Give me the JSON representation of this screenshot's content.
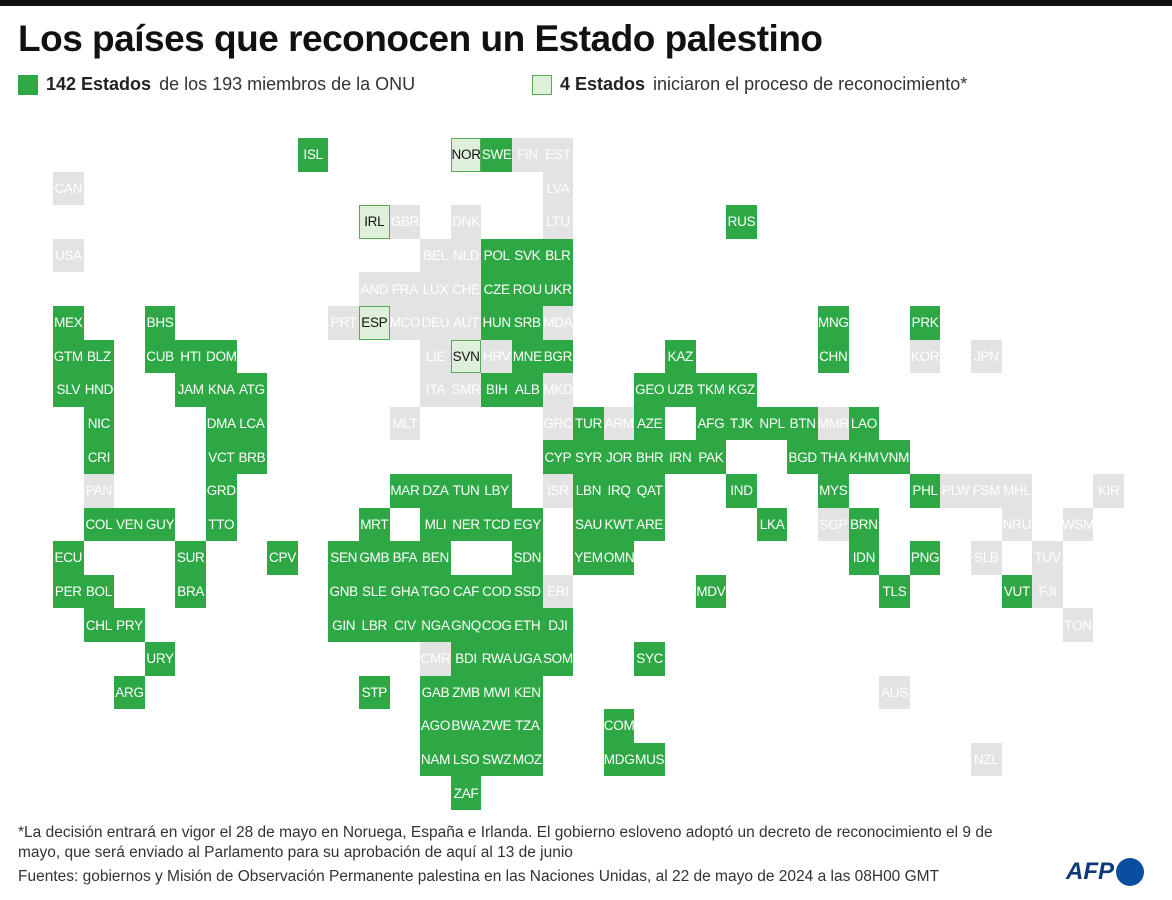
{
  "title": "Los países que reconocen un Estado palestino",
  "legend": {
    "recognized_bold": "142 Estados",
    "recognized_text": "de los 193 miembros de la ONU",
    "initiated_bold": "4 Estados",
    "initiated_text": "iniciaron el proceso de reconocimiento*"
  },
  "colors": {
    "recognized": "#2ea845",
    "initiated": "#dff0da",
    "not_recognized": "#e3e3e3"
  },
  "tiles": [
    {
      "code": "ISL",
      "status": "recognized"
    },
    {
      "code": "NOR",
      "status": "initiated"
    },
    {
      "code": "SWE",
      "status": "recognized"
    },
    {
      "code": "FIN",
      "status": "not_recognized"
    },
    {
      "code": "EST",
      "status": "not_recognized"
    },
    {
      "code": "CAN",
      "status": "not_recognized"
    },
    {
      "code": "LVA",
      "status": "not_recognized"
    },
    {
      "code": "IRL",
      "status": "initiated"
    },
    {
      "code": "GBR",
      "status": "not_recognized"
    },
    {
      "code": "DNK",
      "status": "not_recognized"
    },
    {
      "code": "LTU",
      "status": "not_recognized"
    },
    {
      "code": "RUS",
      "status": "recognized"
    },
    {
      "code": "USA",
      "status": "not_recognized"
    },
    {
      "code": "BEL",
      "status": "not_recognized"
    },
    {
      "code": "NLD",
      "status": "not_recognized"
    },
    {
      "code": "POL",
      "status": "recognized"
    },
    {
      "code": "SVK",
      "status": "recognized"
    },
    {
      "code": "BLR",
      "status": "recognized"
    },
    {
      "code": "AND",
      "status": "not_recognized"
    },
    {
      "code": "FRA",
      "status": "not_recognized"
    },
    {
      "code": "LUX",
      "status": "not_recognized"
    },
    {
      "code": "CHE",
      "status": "not_recognized"
    },
    {
      "code": "CZE",
      "status": "recognized"
    },
    {
      "code": "ROU",
      "status": "recognized"
    },
    {
      "code": "UKR",
      "status": "recognized"
    },
    {
      "code": "MEX",
      "status": "recognized"
    },
    {
      "code": "BHS",
      "status": "recognized"
    },
    {
      "code": "PRT",
      "status": "not_recognized"
    },
    {
      "code": "ESP",
      "status": "initiated"
    },
    {
      "code": "MCO",
      "status": "not_recognized"
    },
    {
      "code": "DEU",
      "status": "not_recognized"
    },
    {
      "code": "AUT",
      "status": "not_recognized"
    },
    {
      "code": "HUN",
      "status": "recognized"
    },
    {
      "code": "SRB",
      "status": "recognized"
    },
    {
      "code": "MDA",
      "status": "not_recognized"
    },
    {
      "code": "MNG",
      "status": "recognized"
    },
    {
      "code": "PRK",
      "status": "recognized"
    },
    {
      "code": "GTM",
      "status": "recognized"
    },
    {
      "code": "BLZ",
      "status": "recognized"
    },
    {
      "code": "CUB",
      "status": "recognized"
    },
    {
      "code": "HTI",
      "status": "recognized"
    },
    {
      "code": "DOM",
      "status": "recognized"
    },
    {
      "code": "LIE",
      "status": "not_recognized"
    },
    {
      "code": "SVN",
      "status": "initiated"
    },
    {
      "code": "HRV",
      "status": "not_recognized"
    },
    {
      "code": "MNE",
      "status": "recognized"
    },
    {
      "code": "BGR",
      "status": "recognized"
    },
    {
      "code": "KAZ",
      "status": "recognized"
    },
    {
      "code": "CHN",
      "status": "recognized"
    },
    {
      "code": "KOR",
      "status": "not_recognized"
    },
    {
      "code": "JPN",
      "status": "not_recognized"
    },
    {
      "code": "SLV",
      "status": "recognized"
    },
    {
      "code": "HND",
      "status": "recognized"
    },
    {
      "code": "JAM",
      "status": "recognized"
    },
    {
      "code": "KNA",
      "status": "recognized"
    },
    {
      "code": "ATG",
      "status": "recognized"
    },
    {
      "code": "ITA",
      "status": "not_recognized"
    },
    {
      "code": "SMR",
      "status": "not_recognized"
    },
    {
      "code": "BIH",
      "status": "recognized"
    },
    {
      "code": "ALB",
      "status": "recognized"
    },
    {
      "code": "MKD",
      "status": "not_recognized"
    },
    {
      "code": "GEO",
      "status": "recognized"
    },
    {
      "code": "UZB",
      "status": "recognized"
    },
    {
      "code": "TKM",
      "status": "recognized"
    },
    {
      "code": "KGZ",
      "status": "recognized"
    },
    {
      "code": "NIC",
      "status": "recognized"
    },
    {
      "code": "DMA",
      "status": "recognized"
    },
    {
      "code": "LCA",
      "status": "recognized"
    },
    {
      "code": "MLT",
      "status": "not_recognized"
    },
    {
      "code": "GRC",
      "status": "not_recognized"
    },
    {
      "code": "TUR",
      "status": "recognized"
    },
    {
      "code": "ARM",
      "status": "not_recognized"
    },
    {
      "code": "AZE",
      "status": "recognized"
    },
    {
      "code": "AFG",
      "status": "recognized"
    },
    {
      "code": "TJK",
      "status": "recognized"
    },
    {
      "code": "NPL",
      "status": "recognized"
    },
    {
      "code": "BTN",
      "status": "recognized"
    },
    {
      "code": "MMR",
      "status": "not_recognized"
    },
    {
      "code": "LAO",
      "status": "recognized"
    },
    {
      "code": "CRI",
      "status": "recognized"
    },
    {
      "code": "VCT",
      "status": "recognized"
    },
    {
      "code": "BRB",
      "status": "recognized"
    },
    {
      "code": "CYP",
      "status": "recognized"
    },
    {
      "code": "SYR",
      "status": "recognized"
    },
    {
      "code": "JOR",
      "status": "recognized"
    },
    {
      "code": "BHR",
      "status": "recognized"
    },
    {
      "code": "IRN",
      "status": "recognized"
    },
    {
      "code": "PAK",
      "status": "recognized"
    },
    {
      "code": "BGD",
      "status": "recognized"
    },
    {
      "code": "THA",
      "status": "recognized"
    },
    {
      "code": "KHM",
      "status": "recognized"
    },
    {
      "code": "VNM",
      "status": "recognized"
    },
    {
      "code": "PAN",
      "status": "not_recognized"
    },
    {
      "code": "GRD",
      "status": "recognized"
    },
    {
      "code": "MAR",
      "status": "recognized"
    },
    {
      "code": "DZA",
      "status": "recognized"
    },
    {
      "code": "TUN",
      "status": "recognized"
    },
    {
      "code": "LBY",
      "status": "recognized"
    },
    {
      "code": "ISR",
      "status": "not_recognized"
    },
    {
      "code": "LBN",
      "status": "recognized"
    },
    {
      "code": "IRQ",
      "status": "recognized"
    },
    {
      "code": "QAT",
      "status": "recognized"
    },
    {
      "code": "IND",
      "status": "recognized"
    },
    {
      "code": "MYS",
      "status": "recognized"
    },
    {
      "code": "PHL",
      "status": "recognized"
    },
    {
      "code": "PLW",
      "status": "not_recognized"
    },
    {
      "code": "FSM",
      "status": "not_recognized"
    },
    {
      "code": "MHL",
      "status": "not_recognized"
    },
    {
      "code": "KIR",
      "status": "not_recognized"
    },
    {
      "code": "COL",
      "status": "recognized"
    },
    {
      "code": "VEN",
      "status": "recognized"
    },
    {
      "code": "GUY",
      "status": "recognized"
    },
    {
      "code": "TTO",
      "status": "recognized"
    },
    {
      "code": "MRT",
      "status": "recognized"
    },
    {
      "code": "MLI",
      "status": "recognized"
    },
    {
      "code": "NER",
      "status": "recognized"
    },
    {
      "code": "TCD",
      "status": "recognized"
    },
    {
      "code": "EGY",
      "status": "recognized"
    },
    {
      "code": "SAU",
      "status": "recognized"
    },
    {
      "code": "KWT",
      "status": "recognized"
    },
    {
      "code": "ARE",
      "status": "recognized"
    },
    {
      "code": "LKA",
      "status": "recognized"
    },
    {
      "code": "SGP",
      "status": "not_recognized"
    },
    {
      "code": "BRN",
      "status": "recognized"
    },
    {
      "code": "NRU",
      "status": "not_recognized"
    },
    {
      "code": "WSM",
      "status": "not_recognized"
    },
    {
      "code": "ECU",
      "status": "recognized"
    },
    {
      "code": "SUR",
      "status": "recognized"
    },
    {
      "code": "CPV",
      "status": "recognized"
    },
    {
      "code": "SEN",
      "status": "recognized"
    },
    {
      "code": "GMB",
      "status": "recognized"
    },
    {
      "code": "BFA",
      "status": "recognized"
    },
    {
      "code": "BEN",
      "status": "recognized"
    },
    {
      "code": "SDN",
      "status": "recognized"
    },
    {
      "code": "YEM",
      "status": "recognized"
    },
    {
      "code": "OMN",
      "status": "recognized"
    },
    {
      "code": "IDN",
      "status": "recognized"
    },
    {
      "code": "PNG",
      "status": "recognized"
    },
    {
      "code": "SLB",
      "status": "not_recognized"
    },
    {
      "code": "TUV",
      "status": "not_recognized"
    },
    {
      "code": "PER",
      "status": "recognized"
    },
    {
      "code": "BOL",
      "status": "recognized"
    },
    {
      "code": "BRA",
      "status": "recognized"
    },
    {
      "code": "GNB",
      "status": "recognized"
    },
    {
      "code": "SLE",
      "status": "recognized"
    },
    {
      "code": "GHA",
      "status": "recognized"
    },
    {
      "code": "TGO",
      "status": "recognized"
    },
    {
      "code": "CAF",
      "status": "recognized"
    },
    {
      "code": "COD",
      "status": "recognized"
    },
    {
      "code": "SSD",
      "status": "recognized"
    },
    {
      "code": "ERI",
      "status": "not_recognized"
    },
    {
      "code": "MDV",
      "status": "recognized"
    },
    {
      "code": "TLS",
      "status": "recognized"
    },
    {
      "code": "VUT",
      "status": "recognized"
    },
    {
      "code": "FJI",
      "status": "not_recognized"
    },
    {
      "code": "CHL",
      "status": "recognized"
    },
    {
      "code": "PRY",
      "status": "recognized"
    },
    {
      "code": "GIN",
      "status": "recognized"
    },
    {
      "code": "LBR",
      "status": "recognized"
    },
    {
      "code": "CIV",
      "status": "recognized"
    },
    {
      "code": "NGA",
      "status": "recognized"
    },
    {
      "code": "GNQ",
      "status": "recognized"
    },
    {
      "code": "COG",
      "status": "recognized"
    },
    {
      "code": "ETH",
      "status": "recognized"
    },
    {
      "code": "DJI",
      "status": "recognized"
    },
    {
      "code": "TON",
      "status": "not_recognized"
    },
    {
      "code": "URY",
      "status": "recognized"
    },
    {
      "code": "CMR",
      "status": "not_recognized"
    },
    {
      "code": "BDI",
      "status": "recognized"
    },
    {
      "code": "RWA",
      "status": "recognized"
    },
    {
      "code": "UGA",
      "status": "recognized"
    },
    {
      "code": "SOM",
      "status": "recognized"
    },
    {
      "code": "SYC",
      "status": "recognized"
    },
    {
      "code": "ARG",
      "status": "recognized"
    },
    {
      "code": "STP",
      "status": "recognized"
    },
    {
      "code": "GAB",
      "status": "recognized"
    },
    {
      "code": "ZMB",
      "status": "recognized"
    },
    {
      "code": "MWI",
      "status": "recognized"
    },
    {
      "code": "KEN",
      "status": "recognized"
    },
    {
      "code": "AUS",
      "status": "not_recognized"
    },
    {
      "code": "AGO",
      "status": "recognized"
    },
    {
      "code": "BWA",
      "status": "recognized"
    },
    {
      "code": "ZWE",
      "status": "recognized"
    },
    {
      "code": "TZA",
      "status": "recognized"
    },
    {
      "code": "COM",
      "status": "recognized"
    },
    {
      "code": "NAM",
      "status": "recognized"
    },
    {
      "code": "LSO",
      "status": "recognized"
    },
    {
      "code": "SWZ",
      "status": "recognized"
    },
    {
      "code": "MOZ",
      "status": "recognized"
    },
    {
      "code": "MDG",
      "status": "recognized"
    },
    {
      "code": "MUS",
      "status": "recognized"
    },
    {
      "code": "NZL",
      "status": "not_recognized"
    },
    {
      "code": "ZAF",
      "status": "recognized"
    }
  ],
  "footnote": "*La decisión entrará en vigor el 28 de mayo en Noruega, España e Irlanda. El gobierno esloveno adoptó un decreto de reconocimiento el 9 de mayo, que será enviado al Parlamento para su aprobación de aquí al 13 de junio",
  "sources": "Fuentes: gobiernos y Misión de Observación Permanente palestina en las Naciones Unidas, al 22 de mayo de 2024 a las 08H00 GMT",
  "logo": "AFP"
}
